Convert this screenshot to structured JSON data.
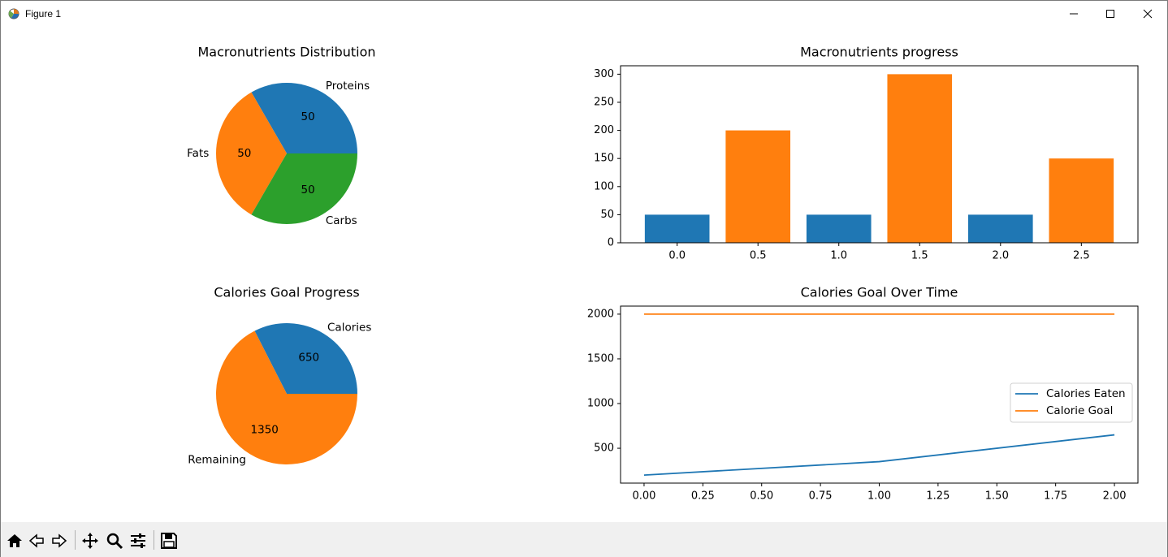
{
  "window": {
    "title": "Figure 1",
    "minimize_icon": "minimize-icon",
    "maximize_icon": "maximize-icon",
    "close_icon": "close-icon"
  },
  "toolbar": {
    "buttons": [
      "home-icon",
      "back-arrow-icon",
      "forward-arrow-icon",
      "pan-icon",
      "zoom-icon",
      "configure-subplots-icon",
      "save-icon"
    ]
  },
  "colors": {
    "blue": "#1f77b4",
    "orange": "#ff7f0e",
    "green": "#2ca02c"
  },
  "chart_data": [
    {
      "type": "pie",
      "title": "Macronutrients Distribution",
      "labels": [
        "Proteins",
        "Fats",
        "Carbs"
      ],
      "values": [
        50,
        50,
        50
      ],
      "value_labels": [
        "50",
        "50",
        "50"
      ],
      "colors": [
        "#1f77b4",
        "#ff7f0e",
        "#2ca02c"
      ],
      "startangle": 0
    },
    {
      "type": "bar",
      "title": "Macronutrients progress",
      "x": [
        0.0,
        0.5,
        1.0,
        1.5,
        2.0,
        2.5
      ],
      "values": [
        50,
        200,
        50,
        300,
        50,
        150
      ],
      "bar_colors": [
        "#1f77b4",
        "#ff7f0e",
        "#1f77b4",
        "#ff7f0e",
        "#1f77b4",
        "#ff7f0e"
      ],
      "xticks": [
        "0.0",
        "0.5",
        "1.0",
        "1.5",
        "2.0",
        "2.5"
      ],
      "yticks": [
        "0",
        "50",
        "100",
        "150",
        "200",
        "250",
        "300"
      ],
      "ylim": [
        0,
        315
      ],
      "xlim": [
        -0.35,
        2.85
      ]
    },
    {
      "type": "pie",
      "title": "Calories Goal Progress",
      "labels": [
        "Calories",
        "Remaining"
      ],
      "values": [
        650,
        1350
      ],
      "value_labels": [
        "650",
        "1350"
      ],
      "colors": [
        "#1f77b4",
        "#ff7f0e"
      ],
      "startangle": 0
    },
    {
      "type": "line",
      "title": "Calories Goal Over Time",
      "x": [
        0,
        1,
        2
      ],
      "series": [
        {
          "name": "Calories Eaten",
          "values": [
            200,
            350,
            650
          ],
          "color": "#1f77b4"
        },
        {
          "name": "Calorie Goal",
          "values": [
            2000,
            2000,
            2000
          ],
          "color": "#ff7f0e"
        }
      ],
      "xticks": [
        "0.00",
        "0.25",
        "0.50",
        "0.75",
        "1.00",
        "1.25",
        "1.50",
        "1.75",
        "2.00"
      ],
      "yticks": [
        "500",
        "1000",
        "1500",
        "2000"
      ],
      "xlim": [
        -0.1,
        2.1
      ],
      "ylim": [
        110,
        2090
      ],
      "legend": "center-right"
    }
  ]
}
